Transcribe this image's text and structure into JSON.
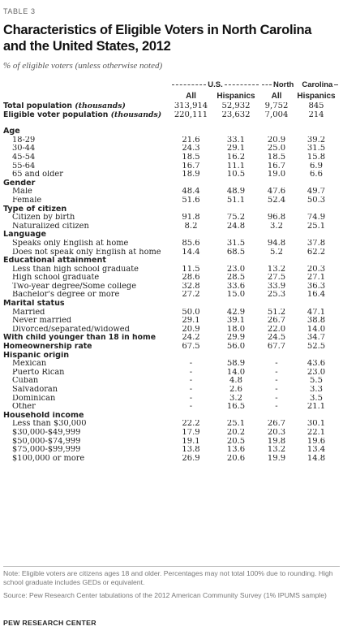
{
  "table_label": "TABLE 3",
  "title": "Characteristics of Eligible Voters in North Carolina and the United States, 2012",
  "subtitle": "% of eligible voters (unless otherwise noted)",
  "groups": {
    "us": "U.S.",
    "nc_left": "North",
    "nc_right": "Carolina"
  },
  "columns": [
    "All",
    "Hispanics",
    "All",
    "Hispanics"
  ],
  "rows": [
    {
      "type": "bold",
      "label": "Total population ",
      "label_italic": "(thousands)",
      "values": [
        "313,914",
        "52,932",
        "9,752",
        "845"
      ]
    },
    {
      "type": "bold",
      "label": "Eligible voter population ",
      "label_italic": "(thousands)",
      "values": [
        "220,111",
        "23,632",
        "7,004",
        "214"
      ]
    },
    {
      "type": "gap"
    },
    {
      "type": "section",
      "label": "Age"
    },
    {
      "type": "sub",
      "label": "18-29",
      "values": [
        "21.6",
        "33.1",
        "20.9",
        "39.2"
      ]
    },
    {
      "type": "sub",
      "label": "30-44",
      "values": [
        "24.3",
        "29.1",
        "25.0",
        "31.5"
      ]
    },
    {
      "type": "sub",
      "label": "45-54",
      "values": [
        "18.5",
        "16.2",
        "18.5",
        "15.8"
      ]
    },
    {
      "type": "sub",
      "label": "55-64",
      "values": [
        "16.7",
        "11.1",
        "16.7",
        "6.9"
      ]
    },
    {
      "type": "sub",
      "label": "65 and older",
      "values": [
        "18.9",
        "10.5",
        "19.0",
        "6.6"
      ]
    },
    {
      "type": "section",
      "label": "Gender"
    },
    {
      "type": "sub",
      "label": "Male",
      "values": [
        "48.4",
        "48.9",
        "47.6",
        "49.7"
      ]
    },
    {
      "type": "sub",
      "label": "Female",
      "values": [
        "51.6",
        "51.1",
        "52.4",
        "50.3"
      ]
    },
    {
      "type": "section",
      "label": "Type of citizen"
    },
    {
      "type": "sub",
      "label": "Citizen by birth",
      "values": [
        "91.8",
        "75.2",
        "96.8",
        "74.9"
      ]
    },
    {
      "type": "sub",
      "label": "Naturalized citizen",
      "values": [
        "8.2",
        "24.8",
        "3.2",
        "25.1"
      ]
    },
    {
      "type": "section",
      "label": "Language"
    },
    {
      "type": "sub",
      "label": "Speaks only English at home",
      "values": [
        "85.6",
        "31.5",
        "94.8",
        "37.8"
      ]
    },
    {
      "type": "sub",
      "label": "Does not speak only English at home",
      "values": [
        "14.4",
        "68.5",
        "5.2",
        "62.2"
      ]
    },
    {
      "type": "section",
      "label": "Educational attainment"
    },
    {
      "type": "sub",
      "label": "Less than high school graduate",
      "values": [
        "11.5",
        "23.0",
        "13.2",
        "20.3"
      ]
    },
    {
      "type": "sub",
      "label": "High school graduate",
      "values": [
        "28.6",
        "28.5",
        "27.5",
        "27.1"
      ]
    },
    {
      "type": "sub",
      "label": "Two-year degree/Some college",
      "values": [
        "32.8",
        "33.6",
        "33.9",
        "36.3"
      ]
    },
    {
      "type": "sub",
      "label": "Bachelor's degree or more",
      "values": [
        "27.2",
        "15.0",
        "25.3",
        "16.4"
      ]
    },
    {
      "type": "section",
      "label": "Marital status"
    },
    {
      "type": "sub",
      "label": "Married",
      "values": [
        "50.0",
        "42.9",
        "51.2",
        "47.1"
      ]
    },
    {
      "type": "sub",
      "label": "Never married",
      "values": [
        "29.1",
        "39.1",
        "26.7",
        "38.8"
      ]
    },
    {
      "type": "sub",
      "label": "Divorced/separated/widowed",
      "values": [
        "20.9",
        "18.0",
        "22.0",
        "14.0"
      ]
    },
    {
      "type": "bold",
      "label": "With child younger than 18 in home",
      "values": [
        "24.2",
        "29.9",
        "24.5",
        "34.7"
      ]
    },
    {
      "type": "bold",
      "label": "Homeownership rate",
      "values": [
        "67.5",
        "56.0",
        "67.7",
        "52.5"
      ]
    },
    {
      "type": "section",
      "label": "Hispanic origin"
    },
    {
      "type": "sub",
      "label": "Mexican",
      "values": [
        "-",
        "58.9",
        "-",
        "43.6"
      ]
    },
    {
      "type": "sub",
      "label": "Puerto Rican",
      "values": [
        "-",
        "14.0",
        "-",
        "23.0"
      ]
    },
    {
      "type": "sub",
      "label": "Cuban",
      "values": [
        "-",
        "4.8",
        "-",
        "5.5"
      ]
    },
    {
      "type": "sub",
      "label": "Salvadoran",
      "values": [
        "-",
        "2.6",
        "-",
        "3.3"
      ]
    },
    {
      "type": "sub",
      "label": "Dominican",
      "values": [
        "-",
        "3.2",
        "-",
        "3.5"
      ]
    },
    {
      "type": "sub",
      "label": "Other",
      "values": [
        "-",
        "16.5",
        "-",
        "21.1"
      ]
    },
    {
      "type": "section",
      "label": "Household income"
    },
    {
      "type": "sub",
      "label": "Less than $30,000",
      "values": [
        "22.2",
        "25.1",
        "26.7",
        "30.1"
      ]
    },
    {
      "type": "sub",
      "label": "$30,000-$49,999",
      "values": [
        "17.9",
        "20.2",
        "20.3",
        "22.1"
      ]
    },
    {
      "type": "sub",
      "label": "$50,000-$74,999",
      "values": [
        "19.1",
        "20.5",
        "19.8",
        "19.6"
      ]
    },
    {
      "type": "sub",
      "label": "$75,000-$99,999",
      "values": [
        "13.8",
        "13.6",
        "13.2",
        "13.4"
      ]
    },
    {
      "type": "sub",
      "label": "$100,000 or more",
      "values": [
        "26.9",
        "20.6",
        "19.9",
        "14.8"
      ]
    }
  ],
  "note": "Note: Eligible voters are citizens ages 18 and older. Percentages may not total 100% due to rounding. High school graduate includes GEDs or equivalent.",
  "source": "Source: Pew Research Center tabulations of the 2012 American Community Survey (1% IPUMS sample)",
  "credit": "PEW RESEARCH CENTER"
}
